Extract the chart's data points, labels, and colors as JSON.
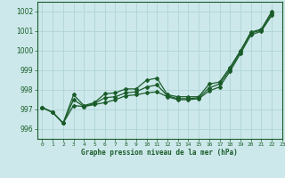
{
  "xlabel": "Graphe pression niveau de la mer (hPa)",
  "background_color": "#cce8ea",
  "grid_color": "#b0d4d8",
  "line_color": "#1a5c2a",
  "ylim": [
    995.5,
    1002.5
  ],
  "xlim": [
    -0.5,
    23
  ],
  "yticks": [
    996,
    997,
    998,
    999,
    1000,
    1001,
    1002
  ],
  "xtick_labels": [
    "0",
    "1",
    "2",
    "3",
    "4",
    "5",
    "6",
    "7",
    "8",
    "9",
    "10",
    "11",
    "12",
    "13",
    "14",
    "15",
    "16",
    "17",
    "18",
    "19",
    "20",
    "21",
    "22",
    "23"
  ],
  "s1": [
    997.1,
    996.85,
    996.3,
    997.75,
    997.2,
    997.35,
    997.8,
    997.85,
    998.05,
    998.05,
    998.5,
    998.6,
    997.75,
    997.65,
    997.65,
    997.65,
    998.3,
    998.4,
    999.15,
    1000.0,
    1000.95,
    1001.1,
    1002.0
  ],
  "s2": [
    997.1,
    996.85,
    996.3,
    997.2,
    997.15,
    997.25,
    997.35,
    997.5,
    997.7,
    997.75,
    997.85,
    997.9,
    997.65,
    997.5,
    997.5,
    997.55,
    997.95,
    998.15,
    998.95,
    999.85,
    1000.8,
    1001.0,
    1001.8
  ],
  "s3": [
    997.1,
    996.85,
    996.3,
    997.5,
    997.15,
    997.3,
    997.6,
    997.65,
    997.85,
    997.9,
    998.15,
    998.25,
    997.7,
    997.55,
    997.55,
    997.6,
    998.1,
    998.3,
    999.05,
    999.95,
    1000.9,
    1001.05,
    1001.9
  ]
}
